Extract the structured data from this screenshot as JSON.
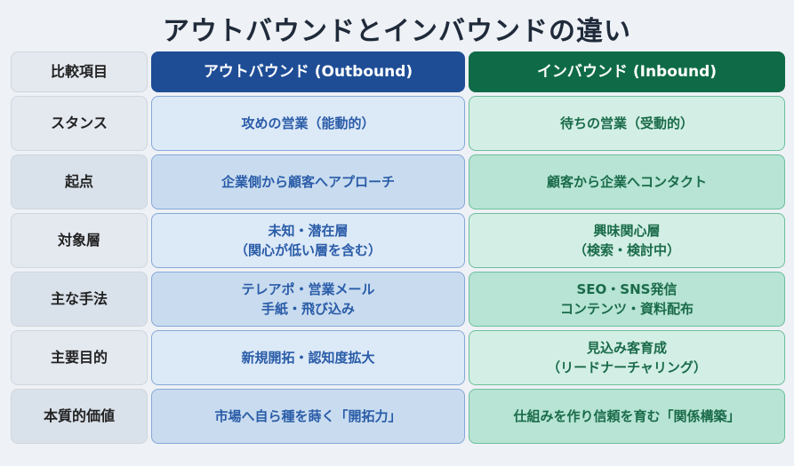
{
  "title": "アウトバウンドとインバウンドの違い",
  "header": {
    "label": "比較項目",
    "outbound": "アウトバウンド (Outbound)",
    "inbound": "インバウンド (Inbound)"
  },
  "colors": {
    "outbound": "#1e4d96",
    "inbound": "#0f6b47"
  },
  "rows": [
    {
      "label": "スタンス",
      "outbound": "攻めの営業（能動的）",
      "inbound": "待ちの営業（受動的）"
    },
    {
      "label": "起点",
      "outbound": "企業側から顧客へアプローチ",
      "inbound": "顧客から企業へコンタクト"
    },
    {
      "label": "対象層",
      "outbound": "未知・潜在層\n（関心が低い層を含む）",
      "inbound": "興味関心層\n（検索・検討中）"
    },
    {
      "label": "主な手法",
      "outbound": "テレアポ・営業メール\n手紙・飛び込み",
      "inbound": "SEO・SNS発信\nコンテンツ・資料配布"
    },
    {
      "label": "主要目的",
      "outbound": "新規開拓・認知度拡大",
      "inbound": "見込み客育成\n（リードナーチャリング）"
    },
    {
      "label": "本質的価値",
      "outbound": "市場へ自ら種を蒔く「開拓力」",
      "inbound": "仕組みを作り信頼を育む「関係構築」"
    }
  ]
}
